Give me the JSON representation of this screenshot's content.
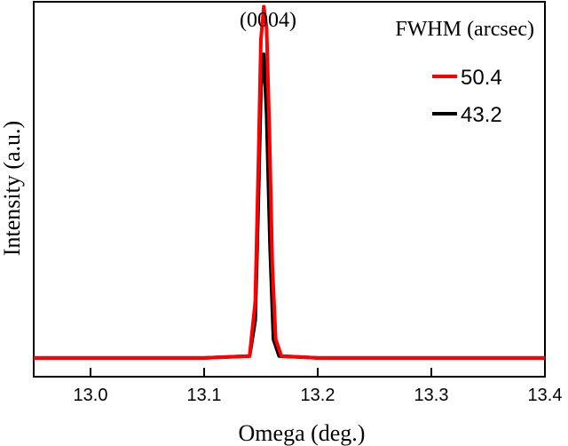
{
  "chart_data": {
    "type": "line",
    "title": "",
    "xlabel": "Omega (deg.)",
    "ylabel": "Intensity (a.u.)",
    "xlim": [
      12.95,
      13.4
    ],
    "ylim": [
      0,
      1.0
    ],
    "xticks": [
      13.0,
      13.1,
      13.2,
      13.3,
      13.4
    ],
    "xtick_labels": [
      "13.0",
      "13.1",
      "13.2",
      "13.3",
      "13.4"
    ],
    "grid": false,
    "annotation": "(0004)",
    "legend": {
      "title": "FWHM (arcsec)",
      "position": "top-right"
    },
    "series": [
      {
        "name": "50.4",
        "color": "#ff0000",
        "x": [
          12.95,
          13.1,
          13.14,
          13.145,
          13.148,
          13.15,
          13.1525,
          13.155,
          13.1575,
          13.16,
          13.163,
          13.168,
          13.2,
          13.4
        ],
        "y": [
          0.05,
          0.05,
          0.055,
          0.2,
          0.6,
          0.9,
          0.987,
          0.93,
          0.65,
          0.3,
          0.1,
          0.055,
          0.05,
          0.05
        ]
      },
      {
        "name": "43.2",
        "color": "#000000",
        "x": [
          12.95,
          13.1,
          13.14,
          13.145,
          13.148,
          13.15,
          13.1525,
          13.155,
          13.158,
          13.161,
          13.166,
          13.2,
          13.4
        ],
        "y": [
          0.05,
          0.05,
          0.055,
          0.15,
          0.5,
          0.77,
          0.86,
          0.7,
          0.35,
          0.1,
          0.055,
          0.05,
          0.05
        ]
      }
    ]
  }
}
